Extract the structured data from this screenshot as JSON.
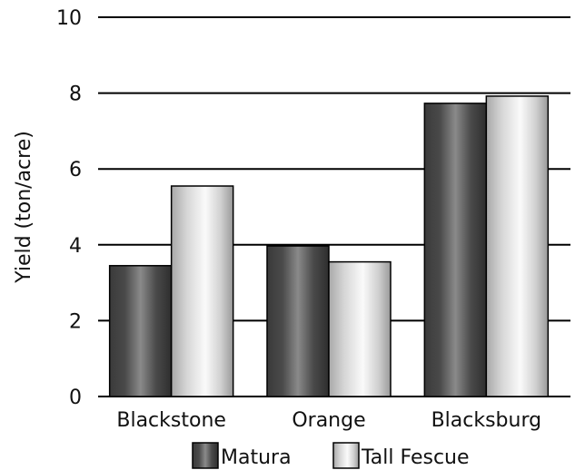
{
  "chart_data": {
    "type": "bar",
    "title": "",
    "xlabel": "",
    "ylabel": "Yield (ton/acre)",
    "categories": [
      "Blackstone",
      "Orange",
      "Blacksburg"
    ],
    "series": [
      {
        "name": "Matura",
        "values": [
          3.45,
          3.97,
          7.73
        ],
        "color": "#555555"
      },
      {
        "name": "Tall Fescue",
        "values": [
          5.55,
          3.55,
          7.92
        ],
        "color": "#e6e6e6"
      }
    ],
    "ylim": [
      0,
      10
    ],
    "yticks": [
      0,
      2,
      4,
      6,
      8,
      10
    ],
    "grid": true,
    "legend": "bottom"
  }
}
